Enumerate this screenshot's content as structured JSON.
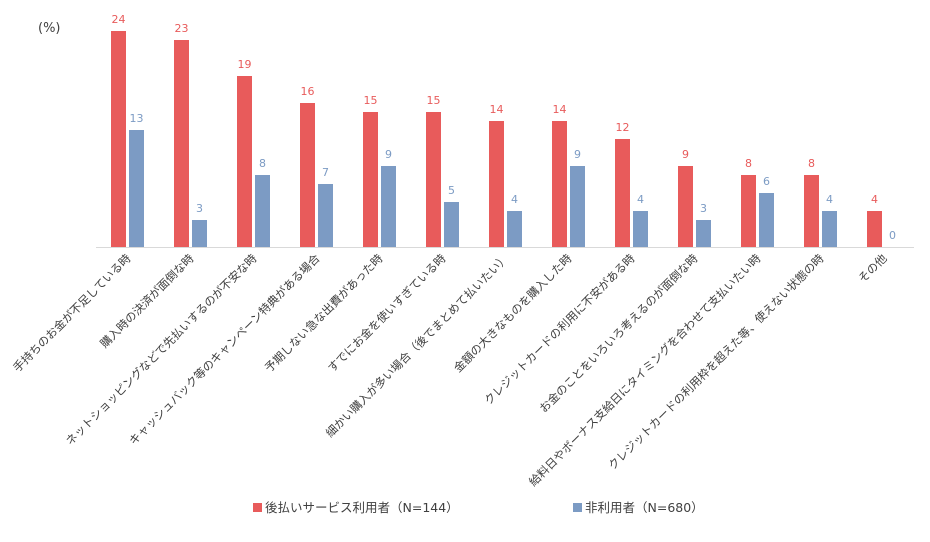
{
  "chart_data": {
    "type": "bar",
    "unit_label": "(%)",
    "categories": [
      "手持ちのお金が不足している時",
      "購入時の決済が面倒な時",
      "ネットショッピングなどで先払いするのが不安な時",
      "キャッシュバック等のキャンペーン特典がある場合",
      "予期しない急な出費があった時",
      "すでにお金を使いすぎている時",
      "細かい購入が多い場合（後でまとめて払いたい）",
      "金額の大きなものを購入した時",
      "クレジットカードの利用に不安がある時",
      "お金のことをいろいろ考えるのが面倒な時",
      "給料日やボーナス支給日にタイミングを合わせて支払いたい時",
      "クレジットカードの利用枠を超えた等、使えない状態の時",
      "その他"
    ],
    "series": [
      {
        "name": "後払いサービス利用者（N=144）",
        "color": "#e85b5b",
        "values": [
          24,
          23,
          19,
          16,
          15,
          15,
          14,
          14,
          12,
          9,
          8,
          8,
          4
        ]
      },
      {
        "name": "非利用者（N=680）",
        "color": "#7c9bc4",
        "values": [
          13,
          3,
          8,
          7,
          9,
          5,
          4,
          9,
          4,
          3,
          6,
          4,
          0
        ]
      }
    ],
    "ylim": [
      0,
      25
    ],
    "grid": false,
    "legend_position": "bottom"
  }
}
